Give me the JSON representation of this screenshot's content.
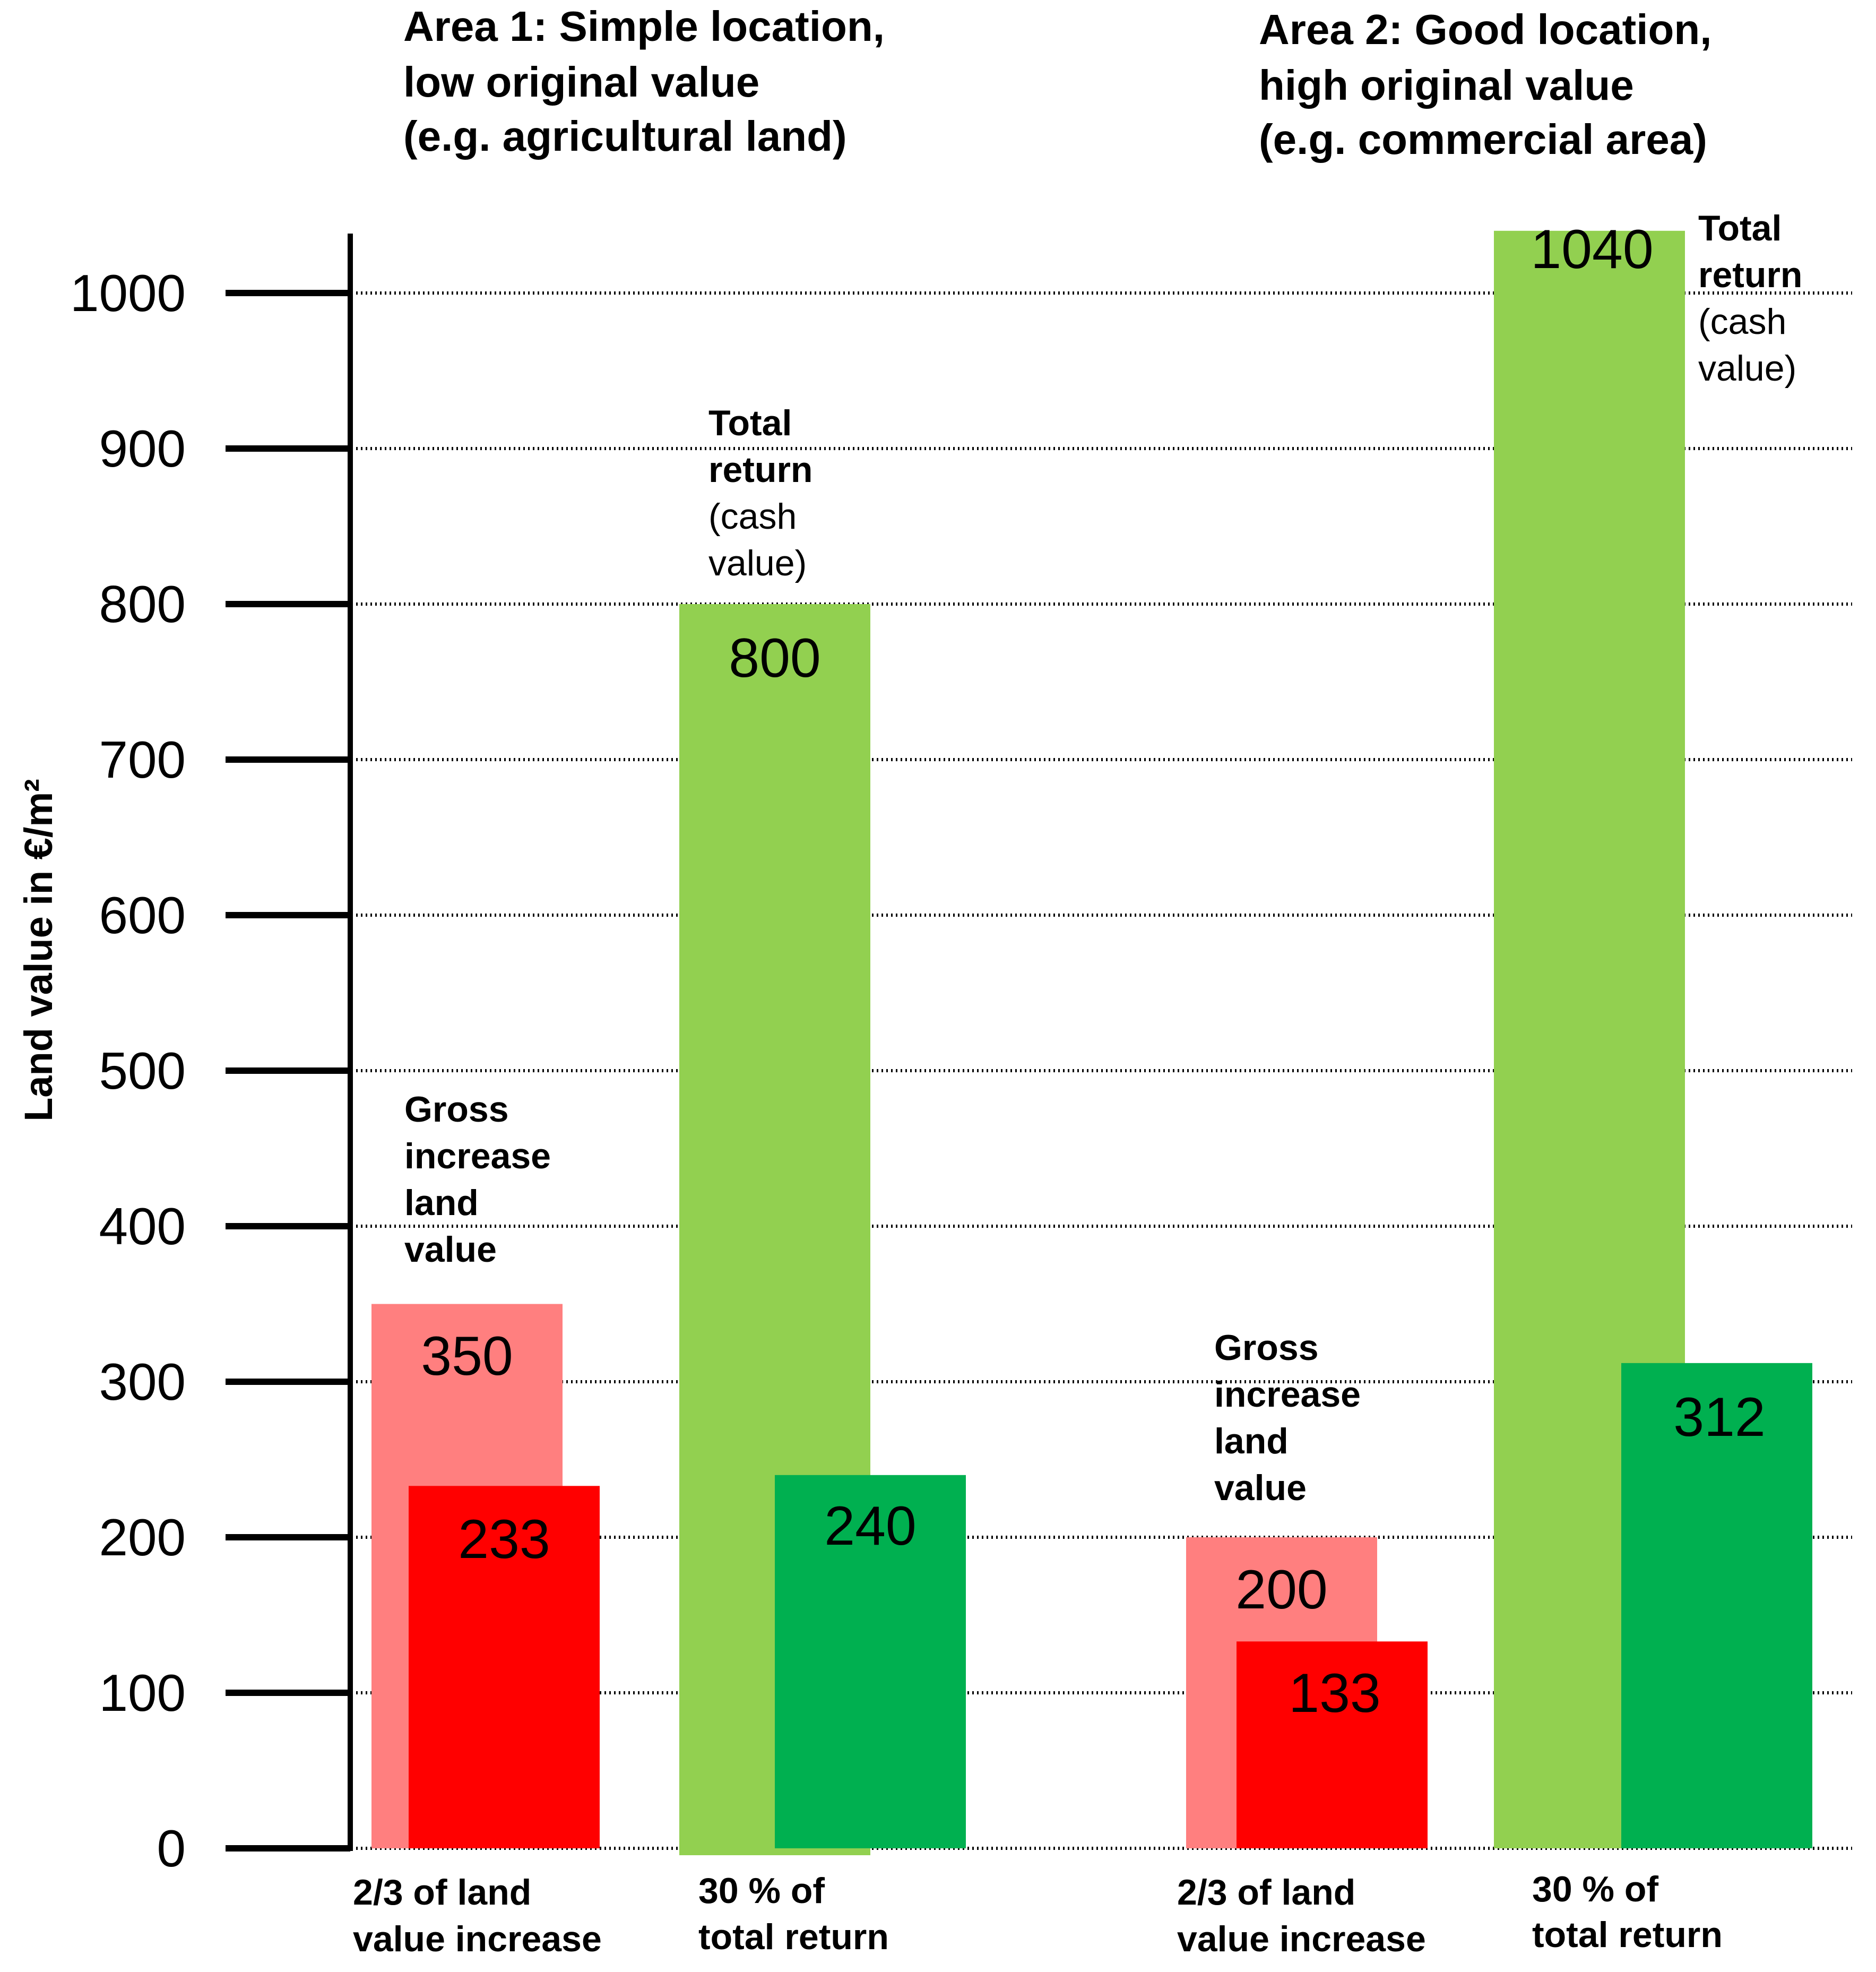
{
  "chart_data": {
    "type": "bar",
    "ylabel": "Land value in €/m²",
    "ylim": [
      0,
      1000
    ],
    "yticks": [
      0,
      100,
      200,
      300,
      400,
      500,
      600,
      700,
      800,
      900,
      1000
    ],
    "grid": true,
    "areas": [
      {
        "title_lines": [
          "Area 1: Simple location,",
          "low original value",
          " (e.g. agricultural land)"
        ],
        "bars": [
          {
            "label": "Gross increase land value",
            "value": 350,
            "value_label": "350",
            "color": "#ff7f7f"
          },
          {
            "label": "2/3 of land value increase",
            "value": 233,
            "value_label": "233",
            "color": "#ff0000"
          },
          {
            "label": "Total return (cash value)",
            "value": 800,
            "value_label": "800",
            "color": "#92d050"
          },
          {
            "label": "30 % of total return",
            "value": 240,
            "value_label": "240",
            "color": "#00b050"
          }
        ]
      },
      {
        "title_lines": [
          "Area 2: Good location,",
          "high original value",
          " (e.g. commercial area)"
        ],
        "bars": [
          {
            "label": "Gross increase land value",
            "value": 200,
            "value_label": "200",
            "color": "#ff7f7f"
          },
          {
            "label": "2/3 of land value increase",
            "value": 133,
            "value_label": "133",
            "color": "#ff0000"
          },
          {
            "label": "Total return (cash value)",
            "value": 1040,
            "value_label": "1040",
            "color": "#92d050"
          },
          {
            "label": "30 % of total return",
            "value": 312,
            "value_label": "312",
            "color": "#00b050"
          }
        ]
      }
    ],
    "annotations": {
      "gross_lines": [
        "Gross",
        "increase",
        "land",
        "value"
      ],
      "total_bold_lines": [
        "Total",
        "return"
      ],
      "total_normal_lines": [
        "(cash",
        "value)"
      ]
    },
    "category_labels": [
      [
        "2/3 of land",
        "value increase"
      ],
      [
        "30 % of",
        "total return"
      ],
      [
        "2/3 of land",
        "value increase"
      ],
      [
        "30 % of",
        "total return"
      ]
    ]
  }
}
